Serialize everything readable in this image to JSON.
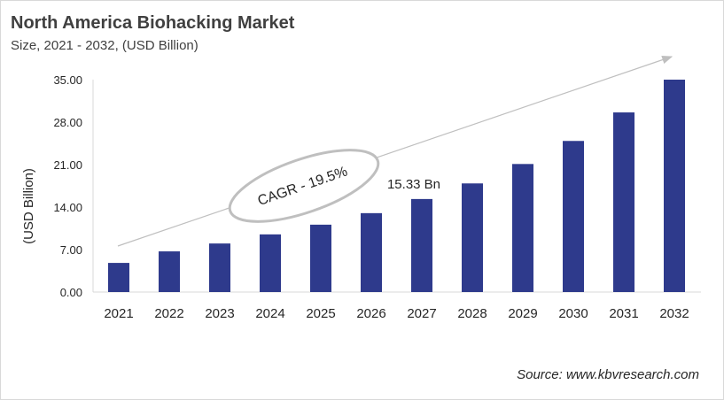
{
  "title": "North America Biohacking Market",
  "subtitle": "Size, 2021 - 2032, (USD Billion)",
  "source": "Source: www.kbvresearch.com",
  "chart_data": {
    "type": "bar",
    "categories": [
      "2021",
      "2022",
      "2023",
      "2024",
      "2025",
      "2026",
      "2027",
      "2028",
      "2029",
      "2030",
      "2031",
      "2032"
    ],
    "values": [
      4.8,
      6.7,
      8.0,
      9.5,
      11.1,
      13.0,
      15.33,
      17.9,
      21.1,
      24.9,
      29.6,
      35.0
    ],
    "ylabel": "(USD Billion)",
    "ylim": [
      0,
      35
    ],
    "yticks": [
      "0.00",
      "7.00",
      "14.00",
      "21.00",
      "28.00",
      "35.00"
    ],
    "grid": false,
    "bar_color": "#2e3a8c",
    "annotations": {
      "data_label": "15.33 Bn",
      "data_label_category": "2027",
      "cagr": "CAGR - 19.5%"
    }
  }
}
